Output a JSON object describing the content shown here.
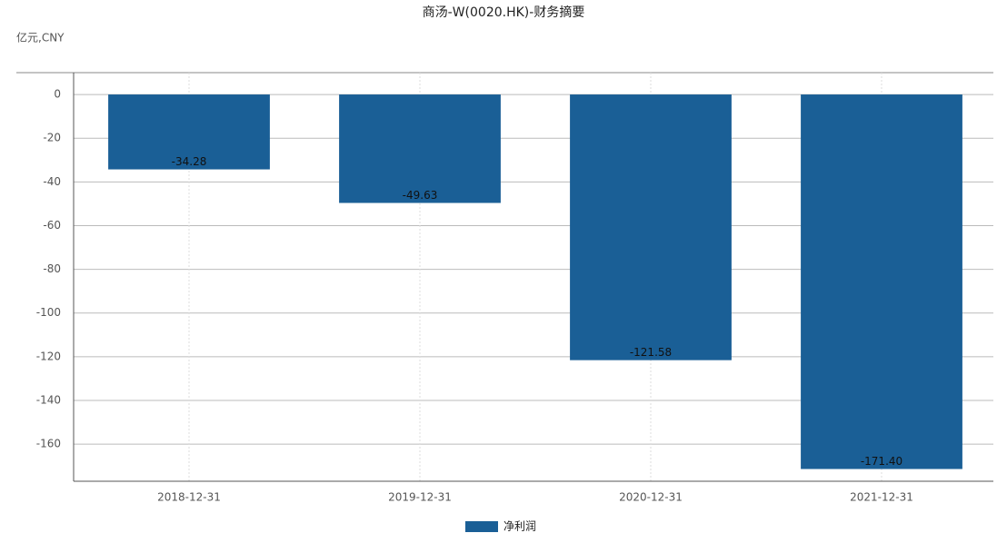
{
  "chart_data": {
    "type": "bar",
    "title": "商汤-W(0020.HK)-财务摘要",
    "unit_label": "亿元,CNY",
    "categories": [
      "2018-12-31",
      "2019-12-31",
      "2020-12-31",
      "2021-12-31"
    ],
    "series": [
      {
        "name": "净利润",
        "color": "#1a5f96",
        "values": [
          -34.28,
          -49.63,
          -121.58,
          -171.4
        ],
        "value_labels": [
          "-34.28",
          "-49.63",
          "-121.58",
          "-171.40"
        ]
      }
    ],
    "ylim": [
      -177,
      10
    ],
    "yticks": [
      0,
      -20,
      -40,
      -60,
      -80,
      -100,
      -120,
      -140,
      -160
    ],
    "grid": true
  }
}
